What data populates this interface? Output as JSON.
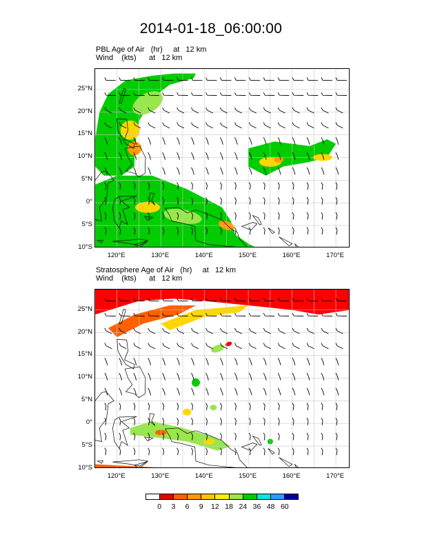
{
  "title": "2014-01-18_06:00:00",
  "panels": [
    {
      "line1": "PBL Age of Air   (hr)     at   12 km",
      "line2": "Wind    (kts)      at   12 km",
      "field_name": "PBL Age of Air",
      "colors_present": [
        "#00cc00",
        "#99e64d",
        "#ffd700",
        "#ff9a00"
      ]
    },
    {
      "line1": "Stratosphere Age of Air   (hr)     at   12 km",
      "line2": "Wind    (kts)      at   12 km",
      "field_name": "Stratosphere Age of Air",
      "colors_present": [
        "#ff0000",
        "#ff6000",
        "#ffd700",
        "#99e64d",
        "#00cc00"
      ]
    }
  ],
  "latitude_ticks": [
    "25°N",
    "20°N",
    "15°N",
    "10°N",
    "5°N",
    "0°",
    "5°S",
    "10°S"
  ],
  "longitude_ticks": [
    "120°E",
    "130°E",
    "140°E",
    "150°E",
    "160°E",
    "170°E"
  ],
  "colorbar": {
    "labels": [
      "0",
      "3",
      "6",
      "9",
      "12",
      "18",
      "24",
      "36",
      "48",
      "60"
    ],
    "colors": [
      "#ffffff",
      "#e60000",
      "#ff6000",
      "#ff9a00",
      "#ffc400",
      "#ffee00",
      "#99e64d",
      "#00cc00",
      "#00e6e6",
      "#3399ff",
      "#000099"
    ]
  }
}
